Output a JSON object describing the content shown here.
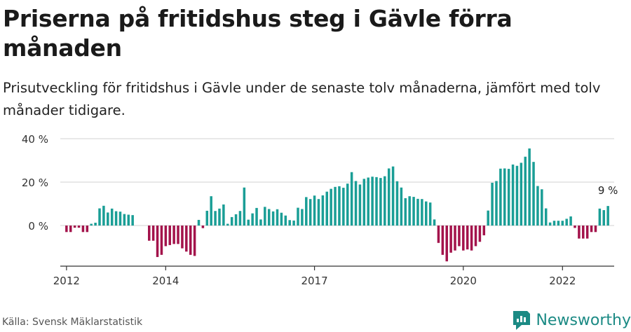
{
  "title": "Priserna på fritidshus steg i Gävle förra månaden",
  "subtitle": "Prisutveckling för fritidshus i Gävle under de senaste tolv månaderna, jämfört med tolv månader tidigare.",
  "source": "Källa: Svensk Mäklarstatistik",
  "brand": {
    "name": "Newsworthy",
    "icon": "newsworthy-logo-icon"
  },
  "colors": {
    "positive": "#1a9e96",
    "negative": "#a3134b",
    "brand": "#1b8a84"
  },
  "chart_data": {
    "type": "bar",
    "x_start": "2011-12",
    "x_end": "2023-01",
    "ylim": [
      -20,
      45
    ],
    "yticks": [
      0,
      20,
      40
    ],
    "ytick_labels": [
      "0 %",
      "20 %",
      "40 %"
    ],
    "xticks": [
      {
        "label": "2012",
        "month": "2012-01"
      },
      {
        "label": "2014",
        "month": "2014-01"
      },
      {
        "label": "2017",
        "month": "2017-01"
      },
      {
        "label": "2020",
        "month": "2020-01"
      },
      {
        "label": "2022",
        "month": "2022-01"
      }
    ],
    "grid": true,
    "annotation": {
      "text": "9 %",
      "month": "2022-12"
    },
    "series": [
      {
        "start": "2012-01",
        "values": [
          -3,
          -3,
          -1,
          -1,
          -3,
          -3,
          0.8,
          1.3,
          7.9,
          9.1,
          6,
          7.8,
          6.6,
          6.4,
          5.3,
          5,
          4.8
        ]
      },
      {
        "start": "2013-09",
        "values": [
          -7,
          -7,
          -14.5,
          -13.5,
          -9.5,
          -9,
          -8.5,
          -8.5,
          -10.5,
          -12,
          -13.5,
          -14,
          2.6,
          -1.2,
          6.8,
          13.5,
          6.7,
          7.8,
          9.7,
          0.8
        ]
      },
      {
        "start": "2015-05",
        "values": [
          3.9,
          5.2,
          6.7,
          17.5,
          2.7,
          5.6,
          8.1,
          2.8,
          8.6,
          7.6,
          6.5,
          7.5,
          5.9,
          4.6,
          2.5,
          2.3,
          8.2,
          7.6,
          13.1,
          12.2,
          13.8,
          12.2,
          13.9,
          15.6,
          16.9,
          17.8,
          18.1,
          17.4,
          19.3,
          24.6,
          20.5,
          18.9,
          21.5,
          22.1,
          22.5,
          22.3,
          21.9,
          22.7,
          26.3,
          27.2,
          20.4,
          17.5,
          12.6,
          13.5,
          13.2,
          12.3,
          12.2,
          11.1,
          10.6,
          2.8
        ]
      },
      {
        "start": "2019-07",
        "values": [
          -8,
          -13.5,
          -16.5,
          -12.5,
          -11.5,
          -9.5,
          -11.5,
          -11,
          -11.5,
          -9.5,
          -7.5,
          -4.5,
          6.9,
          19.7,
          20.5,
          26.2,
          26.3,
          26.1,
          28.1,
          27.5,
          28.9,
          31.7,
          35.5,
          29.3,
          18.2,
          16.7,
          7.9,
          1.4,
          2.2,
          2.2,
          2.2,
          3.1,
          4.2,
          -1.1,
          -6,
          -6,
          -6,
          -3,
          -3
        ]
      },
      {
        "start": "2022-10",
        "values": [
          7.8,
          7.1,
          9
        ]
      }
    ]
  }
}
